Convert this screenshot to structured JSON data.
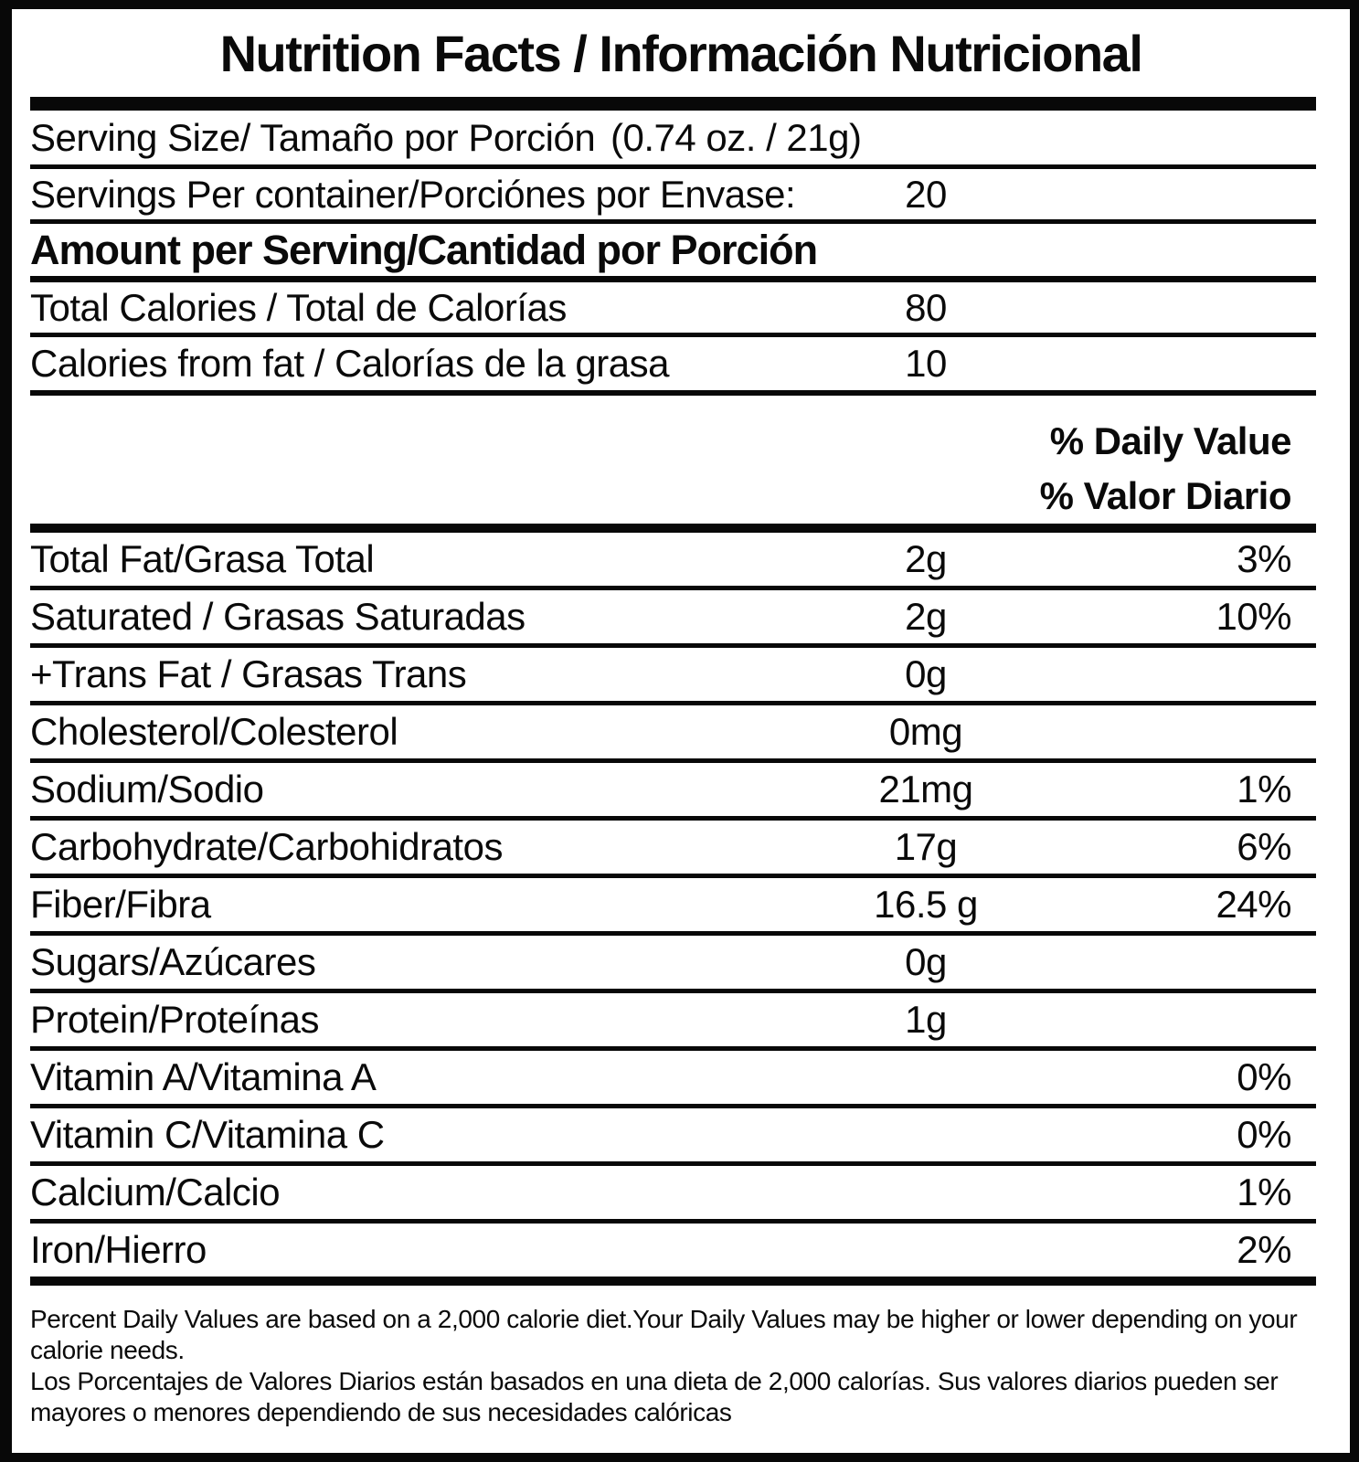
{
  "colors": {
    "ink": "#0a0a0a",
    "background": "#ffffff"
  },
  "label": {
    "title": "Nutrition Facts / Información Nutricional",
    "serving_size": {
      "label": "Serving Size/ Tamaño por Porción",
      "value": "(0.74 oz. / 21g)"
    },
    "servings_per_container": {
      "label": "Servings Per container/Porciónes por Envase:",
      "value": "20"
    },
    "amount_header": "Amount per Serving/Cantidad por Porción",
    "calories_rows": [
      {
        "label": "Total Calories / Total de Calorías",
        "amount": "80"
      },
      {
        "label": "Calories from fat / Calorías de la grasa",
        "amount": "10"
      }
    ],
    "daily_value_header": {
      "en": "% Daily Value",
      "es": "% Valor Diario"
    },
    "nutrient_rows": [
      {
        "label": "Total Fat/Grasa Total",
        "amount": "2g",
        "dv": "3%"
      },
      {
        "label": "Saturated / Grasas Saturadas",
        "amount": "2g",
        "dv": "10%"
      },
      {
        "label": "+Trans Fat / Grasas Trans",
        "amount": "0g",
        "dv": ""
      },
      {
        "label": "Cholesterol/Colesterol",
        "amount": "0mg",
        "dv": ""
      },
      {
        "label": "Sodium/Sodio",
        "amount": "21mg",
        "dv": "1%"
      },
      {
        "label": "Carbohydrate/Carbohidratos",
        "amount": "17g",
        "dv": "6%"
      },
      {
        "label": "Fiber/Fibra",
        "amount": "16.5 g",
        "dv": "24%"
      },
      {
        "label": "Sugars/Azúcares",
        "amount": "0g",
        "dv": ""
      },
      {
        "label": "Protein/Proteínas",
        "amount": "1g",
        "dv": ""
      },
      {
        "label": "Vitamin A/Vitamina A",
        "amount": "",
        "dv": "0%"
      },
      {
        "label": "Vitamin C/Vitamina C",
        "amount": "",
        "dv": "0%"
      },
      {
        "label": "Calcium/Calcio",
        "amount": "",
        "dv": "1%"
      },
      {
        "label": "Iron/Hierro",
        "amount": "",
        "dv": "2%"
      }
    ],
    "footnotes": {
      "en": "Percent Daily Values are based on a 2,000 calorie diet.Your Daily Values may be higher or lower depending on your calorie needs.",
      "es": "Los Porcentajes de Valores Diarios están basados en una dieta de 2,000 calorías. Sus valores diarios pueden ser mayores o menores dependiendo de sus necesidades calóricas"
    }
  }
}
